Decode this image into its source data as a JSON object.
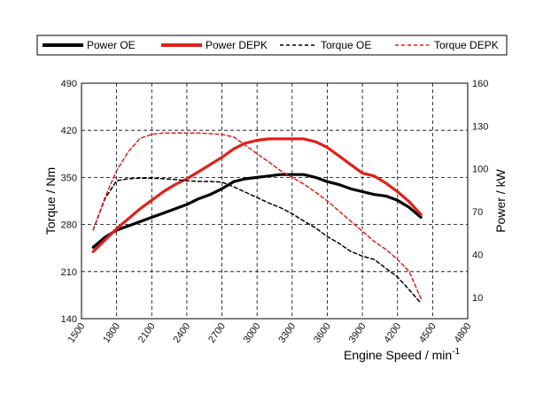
{
  "chart_data": {
    "type": "line",
    "xlabel": "Engine Speed / min",
    "xlabel_sup": "-1",
    "ylabel_left": "Torque / Nm",
    "ylabel_right": "Power / kW",
    "xlim": [
      1500,
      4800
    ],
    "xticks": [
      "1500",
      "1800",
      "2100",
      "2400",
      "2700",
      "3000",
      "3300",
      "3600",
      "3900",
      "4200",
      "4500",
      "4800"
    ],
    "ylim_left": [
      140,
      490
    ],
    "yticks_left": [
      "140",
      "210",
      "280",
      "350",
      "420",
      "490"
    ],
    "ylim_right": [
      -5,
      160
    ],
    "yticks_right": [
      "10",
      "40",
      "70",
      "100",
      "130",
      "160"
    ],
    "grid": true,
    "legend_position": "top",
    "colors": {
      "oe": "#000000",
      "depk": "#e0201b"
    },
    "series": [
      {
        "name": "Power OE",
        "axis": "right",
        "style": "solid",
        "color": "#000000",
        "x": [
          1600,
          1700,
          1800,
          1900,
          2000,
          2100,
          2200,
          2300,
          2400,
          2500,
          2600,
          2700,
          2800,
          2900,
          3000,
          3100,
          3200,
          3300,
          3400,
          3500,
          3600,
          3700,
          3800,
          3900,
          4000,
          4100,
          4200,
          4300,
          4400
        ],
        "y": [
          45,
          52,
          57,
          60,
          63,
          66,
          69,
          72,
          75,
          79,
          82,
          86,
          91,
          93,
          94,
          95,
          96,
          96,
          96,
          94,
          91,
          89,
          86,
          84,
          82,
          81,
          78,
          73,
          66
        ]
      },
      {
        "name": "Power DEPK",
        "axis": "right",
        "style": "solid",
        "color": "#e0201b",
        "x": [
          1600,
          1700,
          1800,
          1900,
          2000,
          2100,
          2200,
          2300,
          2400,
          2500,
          2600,
          2700,
          2800,
          2900,
          3000,
          3100,
          3200,
          3300,
          3400,
          3500,
          3600,
          3700,
          3800,
          3900,
          4000,
          4100,
          4200,
          4300,
          4400
        ],
        "y": [
          42,
          50,
          58,
          65,
          72,
          78,
          84,
          89,
          93,
          98,
          103,
          108,
          114,
          118,
          120,
          121,
          121,
          121,
          121,
          119,
          115,
          109,
          103,
          97,
          95,
          90,
          84,
          77,
          68
        ]
      },
      {
        "name": "Torque OE",
        "axis": "left",
        "style": "dashed",
        "color": "#000000",
        "x": [
          1600,
          1700,
          1800,
          1900,
          2000,
          2100,
          2200,
          2300,
          2400,
          2500,
          2600,
          2700,
          2800,
          2900,
          3000,
          3100,
          3200,
          3300,
          3400,
          3500,
          3600,
          3700,
          3800,
          3900,
          4000,
          4100,
          4200,
          4300,
          4400
        ],
        "y": [
          272,
          318,
          345,
          348,
          349,
          349,
          348,
          347,
          345,
          344,
          344,
          343,
          336,
          328,
          320,
          312,
          305,
          296,
          285,
          275,
          262,
          252,
          240,
          233,
          228,
          215,
          202,
          183,
          163
        ]
      },
      {
        "name": "Torque DEPK",
        "axis": "left",
        "style": "dashed",
        "color": "#e0201b",
        "x": [
          1600,
          1700,
          1800,
          1900,
          2000,
          2100,
          2200,
          2300,
          2400,
          2500,
          2600,
          2700,
          2800,
          2900,
          3000,
          3100,
          3200,
          3300,
          3400,
          3500,
          3600,
          3700,
          3800,
          3900,
          4000,
          4100,
          4200,
          4300,
          4400
        ],
        "y": [
          272,
          320,
          360,
          388,
          408,
          414,
          416,
          416,
          416,
          416,
          415,
          414,
          410,
          398,
          385,
          373,
          360,
          350,
          340,
          328,
          315,
          300,
          285,
          270,
          255,
          243,
          228,
          210,
          170
        ]
      }
    ]
  }
}
